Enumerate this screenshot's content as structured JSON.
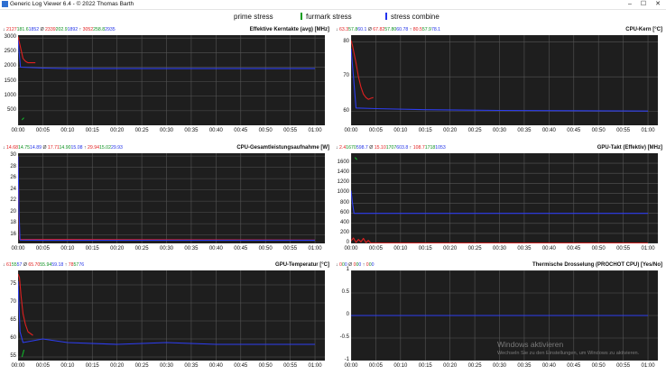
{
  "window": {
    "title": "Generic Log Viewer 6.4 - © 2022 Thomas Barth",
    "controls": {
      "minimize": "–",
      "maximize": "☐",
      "close": "✕"
    }
  },
  "legend": [
    {
      "label": "prime stress",
      "color": "#ffffff"
    },
    {
      "label": "furmark stress",
      "color": "#0a9e1e"
    },
    {
      "label": "stress combine",
      "color": "#2233ee"
    }
  ],
  "x_ticks": [
    "00:00",
    "00:05",
    "00:10",
    "00:15",
    "00:20",
    "00:25",
    "00:30",
    "00:35",
    "00:40",
    "00:45",
    "00:50",
    "00:55",
    "01:00"
  ],
  "panels": [
    {
      "title": "Effektive Kerntakte (avg) [MHz]",
      "stats": {
        "min": [
          "2127",
          "181.6",
          "1852"
        ],
        "avg": [
          "2339",
          "202.9",
          "1892"
        ],
        "max": [
          "3052",
          "258.8",
          "2935"
        ]
      },
      "y_ticks": [
        "3000",
        "2500",
        "2000",
        "1500",
        "1000",
        "500"
      ]
    },
    {
      "title": "CPU-Kern [°C]",
      "stats": {
        "min": [
          "63.3",
          "57.8",
          "60.1"
        ],
        "avg": [
          "67.82",
          "57.80",
          "60.78"
        ],
        "max": [
          "80.5",
          "57.9",
          "78.1"
        ]
      },
      "y_ticks": [
        "80",
        "70",
        "60"
      ]
    },
    {
      "title": "CPU-Gesamtleistungsaufnahme [W]",
      "stats": {
        "min": [
          "14.68",
          "14.75",
          "14.89"
        ],
        "avg": [
          "17.71",
          "14.90",
          "15.08"
        ],
        "max": [
          "29.94",
          "15.02",
          "29.93"
        ]
      },
      "y_ticks": [
        "30",
        "28",
        "26",
        "24",
        "22",
        "20",
        "18",
        "16"
      ]
    },
    {
      "title": "GPU-Takt (Effektiv) [MHz]",
      "stats": {
        "min": [
          "2.4",
          "1670",
          "598.7"
        ],
        "avg": [
          "15.10",
          "1707",
          "603.8"
        ],
        "max": [
          "108.7",
          "1718",
          "1053"
        ]
      },
      "y_ticks": [
        "1600",
        "1400",
        "1200",
        "1000",
        "800",
        "600",
        "400",
        "200",
        "0"
      ]
    },
    {
      "title": "GPU-Temperatur [°C]",
      "stats": {
        "min": [
          "61",
          "55",
          "57"
        ],
        "avg": [
          "65.70",
          "55.94",
          "59.18"
        ],
        "max": [
          "78",
          "57",
          "76"
        ]
      },
      "y_ticks": [
        "75",
        "70",
        "65",
        "60",
        "55"
      ]
    },
    {
      "title": "Thermische Drosselung (PROCHOT CPU) [Yes/No]",
      "stats": {
        "min": [
          "0",
          "0",
          "0"
        ],
        "avg": [
          "0",
          "0",
          "0"
        ],
        "max": [
          "0",
          "0",
          "0"
        ]
      },
      "y_ticks": [
        "1",
        "0.5",
        "0",
        "-0.5",
        "-1"
      ]
    }
  ],
  "watermark": {
    "title": "Windows aktivieren",
    "subtitle": "Wechseln Sie zu den Einstellungen, um Windows zu aktivieren."
  },
  "chart_data": [
    {
      "type": "line",
      "title": "Effektive Kerntakte (avg) [MHz]",
      "ylim": [
        0,
        3100
      ],
      "series": [
        {
          "name": "prime stress",
          "color": "#e02020",
          "x": [
            0,
            0.2,
            0.6,
            1,
            1.5,
            2,
            3.5
          ],
          "y": [
            3052,
            2900,
            2600,
            2300,
            2200,
            2150,
            2150
          ]
        },
        {
          "name": "furmark stress",
          "color": "#11b52a",
          "x": [
            0.8,
            1.0,
            1.2
          ],
          "y": [
            182,
            230,
            259
          ]
        },
        {
          "name": "stress combine",
          "color": "#2d3df0",
          "x": [
            0,
            0.5,
            5,
            10,
            20,
            30,
            40,
            50,
            60
          ],
          "y": [
            2935,
            2000,
            1970,
            1950,
            1950,
            1950,
            1950,
            1950,
            1950
          ]
        }
      ]
    },
    {
      "type": "line",
      "title": "CPU-Kern [°C]",
      "ylim": [
        56,
        82
      ],
      "series": [
        {
          "name": "prime stress",
          "color": "#e02020",
          "x": [
            0,
            0.3,
            1,
            1.5,
            2,
            2.5,
            3,
            3.5,
            4,
            4.5
          ],
          "y": [
            80.5,
            79,
            74,
            70,
            67,
            65,
            64,
            63.5,
            63.8,
            64
          ]
        },
        {
          "name": "stress combine",
          "color": "#2d3df0",
          "x": [
            0,
            0.5,
            1,
            5,
            15,
            30,
            45,
            60
          ],
          "y": [
            78.1,
            70,
            61,
            60.8,
            60.5,
            60.3,
            60.2,
            60.1
          ]
        }
      ]
    },
    {
      "type": "line",
      "title": "CPU-Gesamtleistungsaufnahme [W]",
      "ylim": [
        14.5,
        30.5
      ],
      "series": [
        {
          "name": "prime stress",
          "color": "#e02020",
          "x": [
            0,
            0.15,
            0.3,
            60
          ],
          "y": [
            29.94,
            22,
            15.2,
            15.1
          ]
        },
        {
          "name": "stress combine",
          "color": "#2d3df0",
          "x": [
            0,
            0.2,
            0.4,
            5,
            30,
            60
          ],
          "y": [
            29.93,
            20,
            15.1,
            15.05,
            15.05,
            15.05
          ]
        }
      ]
    },
    {
      "type": "line",
      "title": "GPU-Takt (Effektiv) [MHz]",
      "ylim": [
        0,
        1800
      ],
      "series": [
        {
          "name": "prime stress",
          "color": "#e02020",
          "x": [
            0,
            0.5,
            1,
            1.5,
            2,
            2.5,
            3,
            3.5,
            4,
            60
          ],
          "y": [
            50,
            108.7,
            20,
            80,
            30,
            100,
            15,
            60,
            5,
            5
          ]
        },
        {
          "name": "furmark stress",
          "color": "#11b52a",
          "x": [
            0.8,
            1.2
          ],
          "y": [
            1718,
            1670
          ]
        },
        {
          "name": "stress combine",
          "color": "#2d3df0",
          "x": [
            0,
            0.3,
            0.6,
            5,
            30,
            60
          ],
          "y": [
            1053,
            800,
            600,
            600,
            600,
            600
          ]
        }
      ]
    },
    {
      "type": "line",
      "title": "GPU-Temperatur [°C]",
      "ylim": [
        54,
        79
      ],
      "series": [
        {
          "name": "prime stress",
          "color": "#e02020",
          "x": [
            0,
            0.3,
            0.6,
            1,
            1.5,
            2,
            2.5,
            3
          ],
          "y": [
            78,
            77,
            72,
            67,
            64,
            62,
            61.5,
            61
          ]
        },
        {
          "name": "furmark stress",
          "color": "#11b52a",
          "x": [
            0.8,
            1.2
          ],
          "y": [
            55,
            57
          ]
        },
        {
          "name": "stress combine",
          "color": "#2d3df0",
          "x": [
            0,
            0.4,
            1,
            3,
            5,
            10,
            20,
            30,
            40,
            50,
            60
          ],
          "y": [
            76,
            62,
            59,
            59.5,
            60,
            59,
            58.5,
            59,
            58.5,
            58.5,
            58.5
          ]
        }
      ]
    },
    {
      "type": "line",
      "title": "Thermische Drosselung (PROCHOT CPU) [Yes/No]",
      "ylim": [
        -1,
        1
      ],
      "series": [
        {
          "name": "prime stress",
          "color": "#e02020",
          "x": [
            0,
            60
          ],
          "y": [
            0,
            0
          ]
        },
        {
          "name": "stress combine",
          "color": "#2d3df0",
          "x": [
            0,
            60
          ],
          "y": [
            0,
            0
          ]
        }
      ]
    }
  ]
}
